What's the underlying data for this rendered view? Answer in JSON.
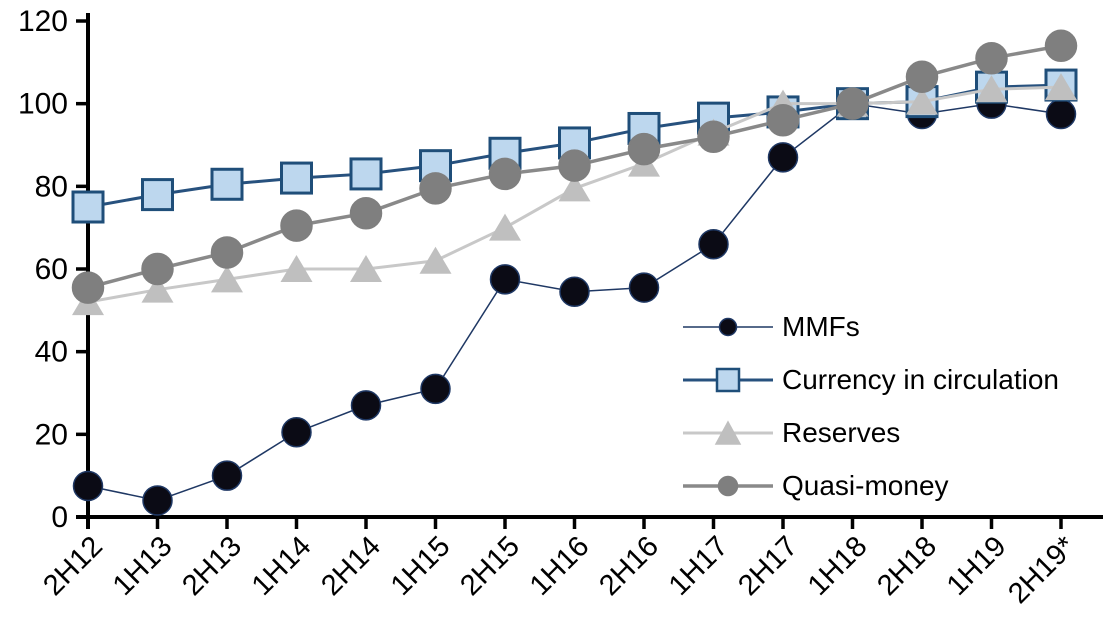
{
  "chart_data": {
    "type": "line",
    "title": "",
    "xlabel": "",
    "ylabel": "",
    "grid": false,
    "legend_position": "center-right-inside",
    "ylim": [
      0,
      120
    ],
    "yticks": [
      0,
      20,
      40,
      60,
      80,
      100,
      120
    ],
    "categories": [
      "2H12",
      "1H13",
      "2H13",
      "1H14",
      "2H14",
      "1H15",
      "2H15",
      "1H16",
      "2H16",
      "1H17",
      "2H17",
      "1H18",
      "2H18",
      "1H19",
      "2H19*"
    ],
    "series": [
      {
        "name": "MMFs",
        "marker": "circle",
        "line_color": "#1F3864",
        "line_width": 1.5,
        "marker_fill": "#0B0B15",
        "marker_stroke": "#1F3864",
        "values": [
          7.5,
          4,
          10,
          20.5,
          27,
          31,
          57.5,
          54.5,
          55.5,
          66,
          87,
          100,
          97.5,
          100,
          97.5
        ]
      },
      {
        "name": "Currency in circulation",
        "marker": "square",
        "line_color": "#27517E",
        "line_width": 3,
        "marker_fill": "#BDD7EE",
        "marker_stroke": "#1F4E79",
        "values": [
          75,
          78,
          80.5,
          82,
          83,
          85,
          88,
          90.5,
          94,
          96.5,
          98,
          100,
          100.5,
          104,
          104.5
        ]
      },
      {
        "name": "Reserves",
        "marker": "triangle",
        "line_color": "#C8C8C8",
        "line_width": 3,
        "marker_fill": "#BFBFBF",
        "marker_stroke": "#BFBFBF",
        "values": [
          52,
          55,
          57.5,
          60,
          60,
          62,
          70,
          79.5,
          85.5,
          93,
          100,
          100,
          100.5,
          103.5,
          104
        ]
      },
      {
        "name": "Quasi-money",
        "marker": "circle",
        "line_color": "#898989",
        "line_width": 3.5,
        "marker_fill": "#7F7F7F",
        "marker_stroke": "#7F7F7F",
        "values": [
          55.5,
          60,
          64,
          70.5,
          73.5,
          79.5,
          83,
          85,
          89,
          92,
          96,
          100,
          106.5,
          111,
          114
        ]
      }
    ],
    "axis_color": "#000000",
    "tick_label_color": "#000000"
  }
}
